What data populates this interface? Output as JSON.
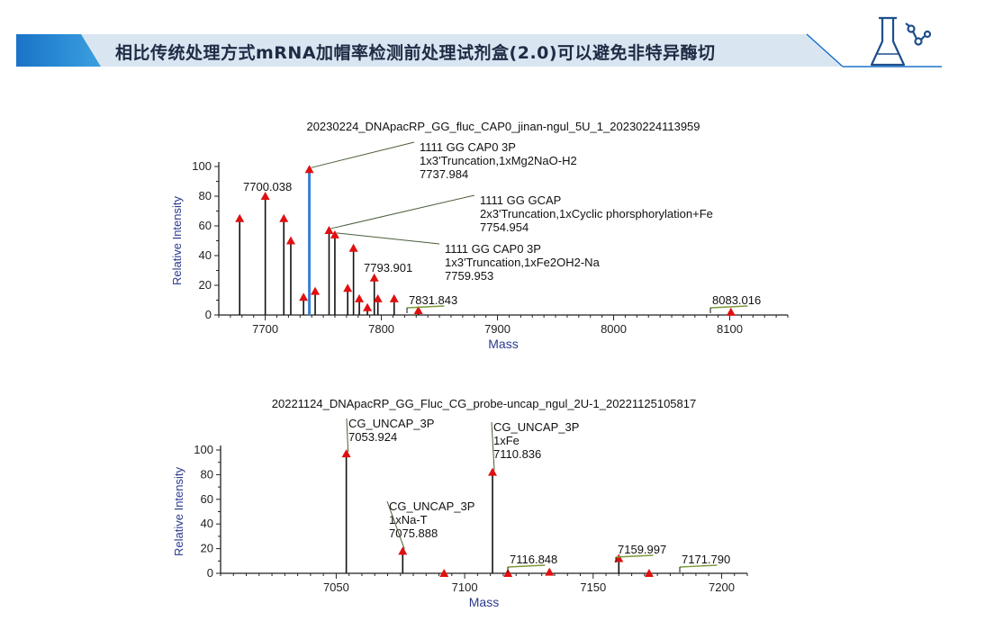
{
  "header": {
    "title": "相比传统处理方式mRNA加帽率检测前处理试剂盒(2.0)可以避免非特异酶切",
    "colors": {
      "accent": "#1a73c7",
      "accent_light": "#3aa0e0",
      "band": "#d9e6f2",
      "icon": "#1f4e8c"
    },
    "icon": "flask-molecule-icon"
  },
  "chart_data": [
    {
      "type": "bar",
      "title": "20230224_DNApacRP_GG_fluc_CAP0_jinan-ngul_5U_1_20230224113959",
      "xlabel": "Mass",
      "ylabel": "Relative Intensity",
      "xlim": [
        7660,
        8150
      ],
      "ylim": [
        0,
        100
      ],
      "xticks": [
        7700,
        7800,
        7900,
        8000,
        8100
      ],
      "yticks": [
        0,
        20,
        40,
        60,
        80,
        100
      ],
      "peaks": [
        {
          "x": 7678,
          "y": 65
        },
        {
          "x": 7700.038,
          "y": 80
        },
        {
          "x": 7716,
          "y": 65
        },
        {
          "x": 7722,
          "y": 50
        },
        {
          "x": 7733,
          "y": 12
        },
        {
          "x": 7737.984,
          "y": 98,
          "highlight": true
        },
        {
          "x": 7743,
          "y": 16
        },
        {
          "x": 7754.954,
          "y": 57
        },
        {
          "x": 7759.953,
          "y": 54
        },
        {
          "x": 7771,
          "y": 18
        },
        {
          "x": 7776,
          "y": 45
        },
        {
          "x": 7781,
          "y": 11
        },
        {
          "x": 7788,
          "y": 5
        },
        {
          "x": 7793.901,
          "y": 25
        },
        {
          "x": 7797,
          "y": 11
        },
        {
          "x": 7811,
          "y": 11
        },
        {
          "x": 7831.843,
          "y": 3
        },
        {
          "x": 8101,
          "y": 2
        }
      ],
      "labels": [
        {
          "peak": 7700.038,
          "lines": [
            "7700.038"
          ]
        },
        {
          "peak": 7737.984,
          "lines": [
            "1111 GG CAP0 3P",
            "1x3'Truncation,1xMg2NaO-H2",
            "7737.984"
          ]
        },
        {
          "peak": 7754.954,
          "lines": [
            "1111 GG GCAP",
            "2x3'Truncation,1xCyclic phorsphorylation+Fe",
            "7754.954"
          ]
        },
        {
          "peak": 7759.953,
          "lines": [
            "1111 GG CAP0 3P",
            "1x3'Truncation,1xFe2OH2-Na",
            "7759.953"
          ]
        },
        {
          "peak": 7793.901,
          "lines": [
            "7793.901"
          ]
        },
        {
          "peak": 7831.843,
          "lines": [
            "7831.843"
          ]
        },
        {
          "peak": 8083.016,
          "lines": [
            "8083.016"
          ]
        }
      ]
    },
    {
      "type": "bar",
      "title": "20221124_DNApacRP_GG_Fluc_CG_probe-uncap_ngul_2U-1_20221125105817",
      "xlabel": "Mass",
      "ylabel": "Relative Intensity",
      "xlim": [
        7005,
        7210
      ],
      "ylim": [
        0,
        100
      ],
      "xticks": [
        7050,
        7100,
        7150,
        7200
      ],
      "yticks": [
        0,
        20,
        40,
        60,
        80,
        100
      ],
      "peaks": [
        {
          "x": 7053.924,
          "y": 97
        },
        {
          "x": 7075.888,
          "y": 18
        },
        {
          "x": 7092,
          "y": 0
        },
        {
          "x": 7110.836,
          "y": 82
        },
        {
          "x": 7116.848,
          "y": 0
        },
        {
          "x": 7133,
          "y": 1
        },
        {
          "x": 7159.997,
          "y": 12
        },
        {
          "x": 7171.79,
          "y": 0
        }
      ],
      "labels": [
        {
          "peak": 7053.924,
          "lines": [
            "CG_UNCAP_3P",
            "7053.924"
          ]
        },
        {
          "peak": 7075.888,
          "lines": [
            "CG_UNCAP_3P",
            "1xNa-T",
            "7075.888"
          ]
        },
        {
          "peak": 7110.836,
          "lines": [
            "CG_UNCAP_3P",
            "1xFe",
            "7110.836"
          ]
        },
        {
          "peak": 7116.848,
          "lines": [
            "7116.848"
          ]
        },
        {
          "peak": 7159.997,
          "lines": [
            "7159.997"
          ]
        },
        {
          "peak": 7171.79,
          "lines": [
            "7171.790"
          ]
        }
      ]
    }
  ]
}
